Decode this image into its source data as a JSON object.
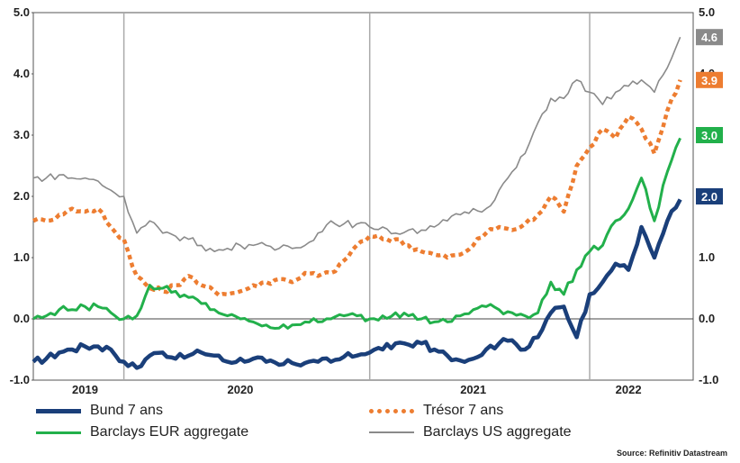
{
  "chart_data": {
    "type": "line",
    "title": "",
    "xlabel": "",
    "ylabel": "",
    "ylim": [
      -1.0,
      5.0
    ],
    "y_ticks": [
      "5.0",
      "4.0",
      "3.0",
      "2.0",
      "1.0",
      "0.0",
      "-1.0"
    ],
    "x_years": [
      "2019",
      "2020",
      "2021",
      "2022"
    ],
    "grid": "vertical lines at year boundaries, horizontal zero line",
    "legend_position": "bottom",
    "x": [
      "2018-11",
      "2018-12",
      "2019-01",
      "2019-02",
      "2019-03",
      "2019-04",
      "2019-05",
      "2019-06",
      "2019-07",
      "2019-08",
      "2019-09",
      "2019-10",
      "2019-11",
      "2019-12",
      "2020-01",
      "2020-02",
      "2020-03",
      "2020-04",
      "2020-05",
      "2020-06",
      "2020-07",
      "2020-08",
      "2020-09",
      "2020-10",
      "2020-11",
      "2020-12",
      "2021-01",
      "2021-02",
      "2021-03",
      "2021-04",
      "2021-05",
      "2021-06",
      "2021-07",
      "2021-08",
      "2021-09",
      "2021-10",
      "2021-11",
      "2021-12",
      "2022-01",
      "2022-02",
      "2022-03",
      "2022-04",
      "2022-05",
      "2022-06",
      "2022-07",
      "2022-08",
      "2022-09",
      "2022-10"
    ],
    "series": [
      {
        "name": "Bund 7 ans",
        "color": "#1a3f7a",
        "style": "solid-thick",
        "end_label": "2.0",
        "values": [
          -0.7,
          -0.65,
          -0.55,
          -0.5,
          -0.45,
          -0.45,
          -0.5,
          -0.7,
          -0.8,
          -0.6,
          -0.55,
          -0.65,
          -0.6,
          -0.55,
          -0.6,
          -0.7,
          -0.65,
          -0.65,
          -0.7,
          -0.75,
          -0.72,
          -0.72,
          -0.7,
          -0.7,
          -0.62,
          -0.6,
          -0.55,
          -0.5,
          -0.4,
          -0.42,
          -0.4,
          -0.5,
          -0.6,
          -0.68,
          -0.65,
          -0.5,
          -0.4,
          -0.35,
          -0.5,
          -0.3,
          0.1,
          0.2,
          -0.3,
          0.4,
          0.6,
          0.9,
          0.8,
          1.5
        ]
      },
      {
        "name": "Trésor 7 ans",
        "color": "#ed7d31",
        "style": "dotted-thick",
        "end_label": "3.9",
        "values": [
          1.6,
          1.6,
          1.7,
          1.8,
          1.75,
          1.8,
          1.5,
          1.3,
          0.7,
          0.5,
          0.45,
          0.55,
          0.7,
          0.55,
          0.45,
          0.4,
          0.45,
          0.55,
          0.6,
          0.65,
          0.6,
          0.75,
          0.7,
          0.75,
          0.95,
          1.2,
          1.35,
          1.3,
          1.3,
          1.2,
          1.1,
          1.05,
          1.0,
          1.05,
          1.2,
          1.4,
          1.5,
          1.45,
          1.55,
          1.7,
          2.0,
          1.75,
          2.5,
          2.8,
          3.1,
          2.95,
          3.3,
          3.1
        ]
      },
      {
        "name": "Barclays EUR aggregate",
        "color": "#22b04b",
        "style": "solid",
        "end_label": "3.0",
        "values": [
          0.0,
          0.05,
          0.15,
          0.15,
          0.2,
          0.2,
          0.1,
          0.0,
          0.05,
          0.55,
          0.5,
          0.45,
          0.35,
          0.25,
          0.15,
          0.05,
          0.0,
          -0.05,
          -0.1,
          -0.15,
          -0.1,
          -0.05,
          -0.05,
          0.0,
          0.05,
          0.05,
          0.0,
          0.05,
          0.1,
          0.05,
          0.0,
          -0.05,
          -0.05,
          0.05,
          0.15,
          0.2,
          0.15,
          0.1,
          0.05,
          0.1,
          0.6,
          0.4,
          0.8,
          1.1,
          1.2,
          1.6,
          1.8,
          2.3
        ]
      },
      {
        "name": "Barclays US aggregate",
        "color": "#8a8a8a",
        "style": "solid-thin",
        "end_label": "4.6",
        "values": [
          2.3,
          2.3,
          2.35,
          2.3,
          2.3,
          2.25,
          2.1,
          2.0,
          1.4,
          1.6,
          1.4,
          1.35,
          1.3,
          1.2,
          1.1,
          1.15,
          1.2,
          1.2,
          1.2,
          1.15,
          1.15,
          1.2,
          1.4,
          1.6,
          1.55,
          1.55,
          1.5,
          1.5,
          1.4,
          1.45,
          1.45,
          1.5,
          1.6,
          1.7,
          1.8,
          1.8,
          2.1,
          2.4,
          2.7,
          3.2,
          3.6,
          3.6,
          3.9,
          3.7,
          3.5,
          3.7,
          3.8,
          3.9
        ]
      }
    ],
    "tail": {
      "x": [
        "2022-11",
        "2022-12",
        "2023-01"
      ],
      "Bund 7 ans": [
        1.0,
        1.6,
        1.95
      ],
      "Trésor 7 ans": [
        2.7,
        3.4,
        3.9
      ],
      "Barclays EUR aggregate": [
        1.6,
        2.4,
        2.95
      ],
      "Barclays US aggregate": [
        3.7,
        4.1,
        4.6
      ]
    }
  },
  "legend": {
    "bund": "Bund 7 ans",
    "tresor": "Trésor 7 ans",
    "eur": "Barclays EUR aggregate",
    "us": "Barclays US aggregate"
  },
  "source": "Source: Refinitiv Datastream"
}
